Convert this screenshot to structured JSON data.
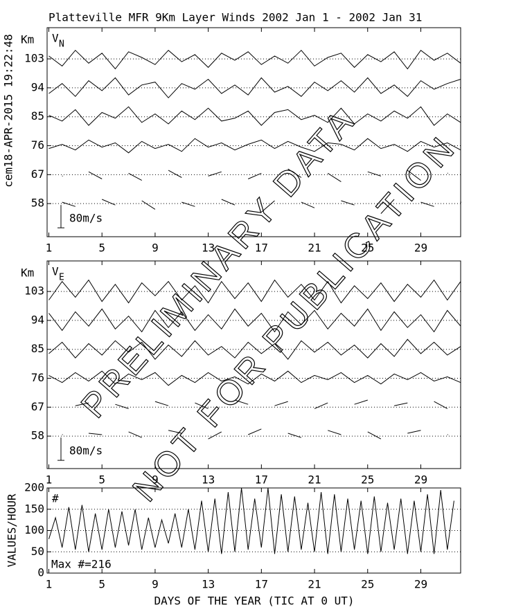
{
  "title": "Platteville MFR 9Km Layer Winds 2002 Jan  1 - 2002 Jan 31",
  "timestamp": "cem18-APR-2015 19:22:48",
  "x_label": "DAYS OF THE YEAR (TIC AT 0 UT)",
  "watermark": [
    "PRELIMINARY DATA",
    "NOT FOR PUBLICATION"
  ],
  "chart_data": [
    {
      "type": "line",
      "label": "V",
      "subscript": "N",
      "y_unit": "Km",
      "xlim": [
        0.87,
        32
      ],
      "xticks": [
        1,
        5,
        9,
        13,
        17,
        21,
        25,
        29
      ],
      "ylim": [
        47.7,
        112.7
      ],
      "yticks": [
        58,
        67,
        76,
        85,
        94,
        103
      ],
      "grid": true,
      "scale_bar": {
        "value": 80,
        "label": "80m/s"
      },
      "x": [
        1,
        2,
        3,
        4,
        5,
        6,
        7,
        8,
        9,
        10,
        11,
        12,
        13,
        14,
        15,
        16,
        17,
        18,
        19,
        20,
        21,
        22,
        23,
        24,
        25,
        26,
        27,
        28,
        29,
        30,
        31,
        32
      ],
      "series": [
        {
          "height": 103,
          "color": "#000000",
          "values": [
            10,
            -25,
            30,
            -15,
            20,
            -35,
            25,
            5,
            -20,
            30,
            -10,
            15,
            -30,
            20,
            -5,
            25,
            -20,
            10,
            -15,
            30,
            -25,
            5,
            20,
            -30,
            15,
            -10,
            25,
            -35,
            30,
            -5,
            20,
            -15
          ]
        },
        {
          "height": 94,
          "color": "#000000",
          "values": [
            -20,
            15,
            -30,
            25,
            -10,
            35,
            -25,
            10,
            20,
            -35,
            15,
            -5,
            30,
            -20,
            10,
            -25,
            35,
            -15,
            5,
            -30,
            20,
            -10,
            25,
            -15,
            35,
            -20,
            10,
            -30,
            25,
            -5,
            15,
            30
          ]
        },
        {
          "height": 85,
          "color": "#000000",
          "values": [
            5,
            -15,
            25,
            -30,
            15,
            -5,
            35,
            -20,
            10,
            -25,
            20,
            -10,
            30,
            -15,
            -5,
            20,
            -30,
            15,
            25,
            -10,
            5,
            -20,
            30,
            -25,
            10,
            -15,
            20,
            -5,
            35,
            -30,
            10,
            -20
          ]
        },
        {
          "height": 76,
          "color": "#000000",
          "values": [
            -10,
            5,
            -15,
            20,
            -5,
            10,
            -25,
            15,
            -10,
            5,
            -20,
            25,
            -5,
            10,
            -15,
            5,
            20,
            -10,
            15,
            -5,
            -20,
            10,
            5,
            -15,
            25,
            -10,
            5,
            -20,
            15,
            -5,
            10,
            -15
          ]
        },
        {
          "height": 67,
          "color": "#000000",
          "values": [
            null,
            -5,
            null,
            10,
            -15,
            null,
            5,
            -20,
            null,
            15,
            -10,
            null,
            -5,
            10,
            null,
            -15,
            5,
            null,
            20,
            -10,
            null,
            5,
            -25,
            null,
            10,
            -5,
            null,
            15,
            -20,
            null,
            5,
            null
          ]
        },
        {
          "height": 58,
          "color": "#000000",
          "values": [
            null,
            5,
            -10,
            null,
            15,
            -5,
            null,
            10,
            -20,
            null,
            5,
            -10,
            null,
            15,
            -5,
            null,
            -30,
            10,
            null,
            5,
            -15,
            null,
            10,
            -5,
            null,
            -35,
            15,
            null,
            5,
            -10,
            null,
            5
          ]
        }
      ]
    },
    {
      "type": "line",
      "label": "V",
      "subscript": "E",
      "y_unit": "Km",
      "xlim": [
        0.87,
        32
      ],
      "xticks": [
        1,
        5,
        9,
        13,
        17,
        21,
        25,
        29
      ],
      "ylim": [
        47.9,
        112.5
      ],
      "yticks": [
        58,
        67,
        76,
        85,
        94,
        103
      ],
      "grid": true,
      "scale_bar": {
        "value": 80,
        "label": "80m/s"
      },
      "x": [
        1,
        2,
        3,
        4,
        5,
        6,
        7,
        8,
        9,
        10,
        11,
        12,
        13,
        14,
        15,
        16,
        17,
        18,
        19,
        20,
        21,
        22,
        23,
        24,
        25,
        26,
        27,
        28,
        29,
        30,
        31,
        32
      ],
      "series": [
        {
          "height": 103,
          "color": "#000000",
          "values": [
            -30,
            35,
            -20,
            40,
            -35,
            25,
            -40,
            30,
            -15,
            35,
            -30,
            20,
            -40,
            35,
            -25,
            30,
            -35,
            40,
            -20,
            25,
            -30,
            35,
            -40,
            20,
            -25,
            30,
            -35,
            25,
            -20,
            40,
            -30,
            35
          ]
        },
        {
          "height": 94,
          "color": "#000000",
          "values": [
            25,
            -35,
            30,
            -20,
            40,
            -30,
            15,
            -40,
            35,
            -25,
            30,
            -35,
            20,
            -30,
            40,
            -20,
            25,
            -40,
            30,
            -15,
            35,
            -30,
            25,
            -20,
            40,
            -35,
            30,
            -25,
            20,
            -40,
            35,
            -20
          ]
        },
        {
          "height": 85,
          "color": "#000000",
          "values": [
            -15,
            25,
            -30,
            20,
            -20,
            30,
            -10,
            25,
            -35,
            15,
            -25,
            30,
            -20,
            10,
            -30,
            25,
            -15,
            20,
            -35,
            30,
            -10,
            25,
            -20,
            15,
            -30,
            20,
            -25,
            35,
            -15,
            25,
            -20,
            10
          ]
        },
        {
          "height": 76,
          "color": "#000000",
          "values": [
            10,
            -15,
            20,
            -10,
            25,
            -20,
            15,
            -5,
            20,
            -25,
            10,
            -15,
            20,
            -10,
            5,
            -20,
            15,
            -10,
            25,
            -15,
            10,
            -5,
            20,
            -15,
            10,
            -20,
            15,
            -5,
            20,
            -10,
            5,
            -15
          ]
        },
        {
          "height": 67,
          "color": "#000000",
          "values": [
            null,
            null,
            5,
            15,
            null,
            10,
            -5,
            null,
            20,
            5,
            null,
            15,
            -5,
            null,
            25,
            10,
            null,
            5,
            20,
            null,
            -5,
            15,
            null,
            10,
            25,
            null,
            5,
            15,
            null,
            20,
            -5,
            null
          ]
        },
        {
          "height": 58,
          "color": "#000000",
          "values": [
            null,
            5,
            null,
            10,
            5,
            null,
            15,
            -5,
            null,
            20,
            10,
            null,
            -10,
            15,
            null,
            5,
            25,
            null,
            10,
            -5,
            null,
            20,
            5,
            null,
            15,
            -10,
            null,
            10,
            20,
            null,
            5,
            null
          ]
        }
      ]
    },
    {
      "type": "line",
      "label": "#",
      "note": "Max #=216",
      "y_label": "VALUES/HOUR",
      "xlim": [
        0.87,
        32
      ],
      "xticks": [
        1,
        5,
        9,
        13,
        17,
        21,
        25,
        29
      ],
      "ylim": [
        0,
        200
      ],
      "yticks": [
        0,
        50,
        100,
        150,
        200
      ],
      "grid": true,
      "x": [
        1,
        1.5,
        2,
        2.5,
        3,
        3.5,
        4,
        4.5,
        5,
        5.5,
        6,
        6.5,
        7,
        7.5,
        8,
        8.5,
        9,
        9.5,
        10,
        10.5,
        11,
        11.5,
        12,
        12.5,
        13,
        13.5,
        14,
        14.5,
        15,
        15.5,
        16,
        16.5,
        17,
        17.5,
        18,
        18.5,
        19,
        19.5,
        20,
        20.5,
        21,
        21.5,
        22,
        22.5,
        23,
        23.5,
        24,
        24.5,
        25,
        25.5,
        26,
        26.5,
        27,
        27.5,
        28,
        28.5,
        29,
        29.5,
        30,
        30.5,
        31,
        31.5
      ],
      "series": [
        {
          "color": "#000000",
          "values": [
            80,
            130,
            60,
            155,
            55,
            160,
            50,
            140,
            55,
            150,
            60,
            145,
            65,
            150,
            55,
            130,
            60,
            125,
            70,
            140,
            60,
            150,
            55,
            170,
            50,
            175,
            45,
            190,
            50,
            200,
            55,
            175,
            60,
            200,
            45,
            185,
            50,
            180,
            55,
            165,
            50,
            190,
            45,
            185,
            50,
            175,
            55,
            170,
            45,
            180,
            50,
            165,
            55,
            175,
            45,
            170,
            50,
            185,
            45,
            195,
            55,
            170
          ]
        }
      ]
    }
  ]
}
